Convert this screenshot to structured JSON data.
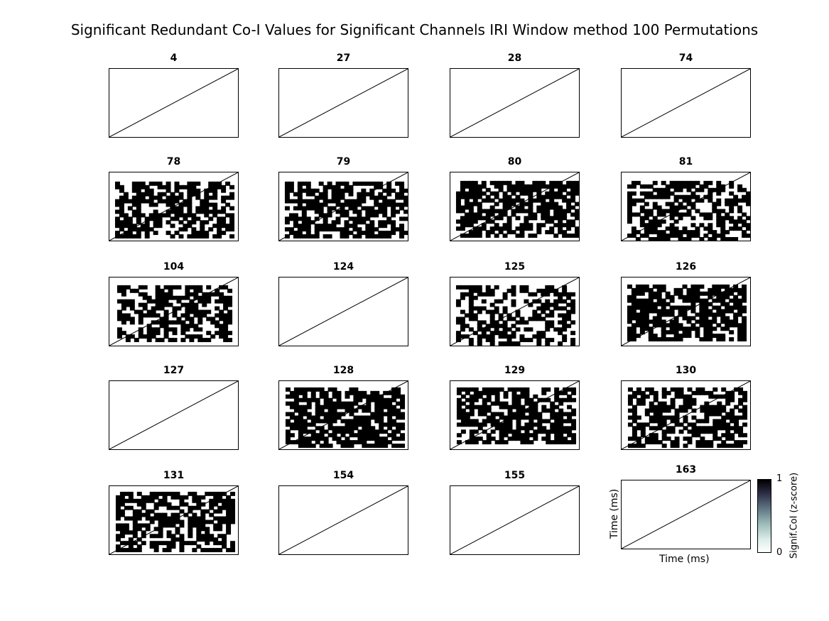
{
  "title": "Significant Redundant Co-I Values for Significant Channels IRI Window method 100 Permutations",
  "chart_data": {
    "type": "heatmap",
    "title": "Significant Redundant Co-I Values for Significant Channels IRI Window method 100 Permutations",
    "xlabel": "Time (ms)",
    "ylabel": "Time (ms)",
    "colorbar": {
      "label": "Signif.CoI (z-score)",
      "ticks": [
        "0",
        "1"
      ],
      "range": [
        0,
        1
      ],
      "colormap": "bone_r"
    },
    "colors": {
      "significant": "#000000",
      "nonsignificant": "#ffffff",
      "diagonal": "#000000"
    },
    "panels": [
      {
        "channel": "4",
        "significant": false
      },
      {
        "channel": "27",
        "significant": false
      },
      {
        "channel": "28",
        "significant": false
      },
      {
        "channel": "74",
        "significant": false
      },
      {
        "channel": "78",
        "significant": true,
        "density": 0.6
      },
      {
        "channel": "79",
        "significant": true,
        "density": 0.62
      },
      {
        "channel": "80",
        "significant": true,
        "density": 0.66
      },
      {
        "channel": "81",
        "significant": true,
        "density": 0.55
      },
      {
        "channel": "104",
        "significant": true,
        "density": 0.58
      },
      {
        "channel": "124",
        "significant": false
      },
      {
        "channel": "125",
        "significant": true,
        "density": 0.5
      },
      {
        "channel": "126",
        "significant": true,
        "density": 0.72
      },
      {
        "channel": "127",
        "significant": false
      },
      {
        "channel": "128",
        "significant": true,
        "density": 0.7
      },
      {
        "channel": "129",
        "significant": true,
        "density": 0.68
      },
      {
        "channel": "130",
        "significant": true,
        "density": 0.64
      },
      {
        "channel": "131",
        "significant": true,
        "density": 0.6
      },
      {
        "channel": "154",
        "significant": false
      },
      {
        "channel": "155",
        "significant": false
      },
      {
        "channel": "163",
        "significant": false
      }
    ]
  }
}
